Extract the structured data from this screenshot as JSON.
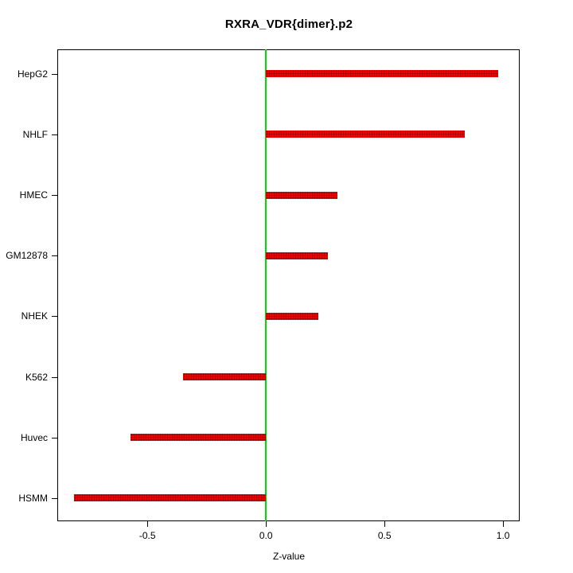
{
  "chart_data": {
    "type": "bar",
    "orientation": "horizontal",
    "title": "RXRA_VDR{dimer}.p2",
    "xlabel": "Z-value",
    "ylabel": "",
    "categories": [
      "HepG2",
      "NHLF",
      "HMEC",
      "GM12878",
      "NHEK",
      "K562",
      "Huvec",
      "HSMM"
    ],
    "values": [
      0.98,
      0.84,
      0.3,
      0.26,
      0.22,
      -0.35,
      -0.57,
      -0.81
    ],
    "xlim": [
      -0.88,
      1.07
    ],
    "xticks": [
      -0.5,
      0.0,
      0.5,
      1.0
    ],
    "xtick_labels": [
      "-0.5",
      "0.0",
      "0.5",
      "1.0"
    ],
    "grid": false,
    "legend": "none",
    "bar_color": "#f40000",
    "bar_dot_color": "#8b0000",
    "zero_line_color": "#00dd00",
    "frame_color": "#000000"
  }
}
